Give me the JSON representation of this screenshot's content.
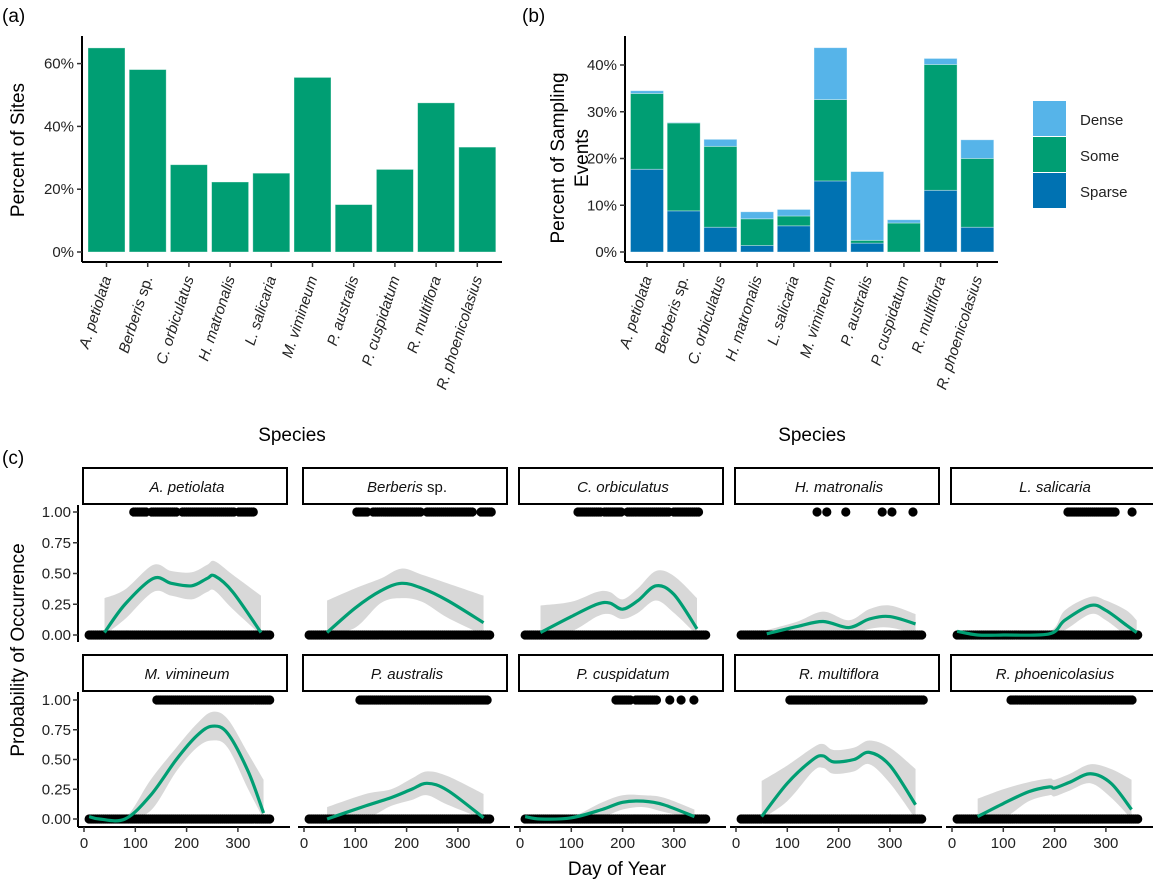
{
  "colors": {
    "green": "#009E73",
    "dense": "#56B4E9",
    "some": "#009E73",
    "sparse": "#0072B2",
    "ribbon": "#d4d4d4",
    "points": "#000000"
  },
  "chart_data": [
    {
      "panel": "(a)",
      "type": "bar",
      "xlabel": "Species",
      "ylabel": "Percent of Sites",
      "categories": [
        "A. petiolata",
        "Berberis sp.",
        "C. orbiculatus",
        "H. matronalis",
        "L. salicaria",
        "M. vimineum",
        "P. australis",
        "P. cuspidatum",
        "R. multiflora",
        "R. phoenicolasius"
      ],
      "values": [
        65.0,
        58.1,
        27.8,
        22.3,
        25.1,
        55.6,
        15.1,
        26.3,
        47.5,
        33.4
      ],
      "yticks": [
        "0%",
        "20%",
        "40%",
        "60%"
      ],
      "ylim": [
        0,
        68
      ],
      "grid": false
    },
    {
      "panel": "(b)",
      "type": "bar",
      "stacked": true,
      "xlabel": "Species",
      "ylabel": [
        "Percent of Sampling",
        "Events"
      ],
      "categories": [
        "A. petiolata",
        "Berberis sp.",
        "C. orbiculatus",
        "H. matronalis",
        "L. salicaria",
        "M. vimineum",
        "P. australis",
        "P. cuspidatum",
        "R. multiflora",
        "R. phoenicolasius"
      ],
      "series": [
        {
          "name": "Sparse",
          "values": [
            17.7,
            8.8,
            5.3,
            1.4,
            5.6,
            15.2,
            1.9,
            0.0,
            13.2,
            5.3
          ]
        },
        {
          "name": "Some",
          "values": [
            16.2,
            18.8,
            17.3,
            5.7,
            2.1,
            17.4,
            0.6,
            6.2,
            26.9,
            14.7
          ]
        },
        {
          "name": "Dense",
          "values": [
            0.6,
            0.1,
            1.5,
            1.5,
            1.4,
            11.1,
            14.7,
            0.7,
            1.3,
            4.0
          ]
        }
      ],
      "legend": {
        "entries": [
          "Dense",
          "Some",
          "Sparse"
        ],
        "placement": "right"
      },
      "yticks": [
        "0%",
        "10%",
        "20%",
        "30%",
        "40%"
      ],
      "ylim": [
        0,
        45
      ],
      "grid": false
    },
    {
      "panel": "(c)",
      "type": "scatter",
      "xlabel": "Day of Year",
      "ylabel": "Probability of Occurrence",
      "xticks": [
        "0",
        "100",
        "200",
        "300"
      ],
      "yticks": [
        "0.00",
        "0.25",
        "0.50",
        "0.75",
        "1.00"
      ],
      "xlim": [
        -10,
        375
      ],
      "ylim": [
        0,
        1
      ],
      "grid": false,
      "facets": [
        {
          "title": "A. petiolata",
          "presence_ranges": [
            [
              97,
              122
            ],
            [
              132,
              183
            ],
            [
              192,
              292
            ],
            [
              302,
              330
            ]
          ],
          "absence_ranges": [
            [
              10,
              365
            ]
          ],
          "smooth": {
            "x": [
              40,
              80,
              135,
              170,
              210,
              240,
              255,
              290,
              345
            ],
            "y": [
              0.02,
              0.25,
              0.46,
              0.42,
              0.4,
              0.46,
              0.48,
              0.35,
              0.02
            ],
            "se": [
              0.28,
              0.12,
              0.11,
              0.1,
              0.11,
              0.11,
              0.12,
              0.14,
              0.3
            ]
          }
        },
        {
          "title": "Berberis sp.",
          "presence_ranges": [
            [
              103,
              125
            ],
            [
              135,
              230
            ],
            [
              240,
              330
            ],
            [
              345,
              365
            ]
          ],
          "absence_ranges": [
            [
              10,
              365
            ]
          ],
          "smooth": {
            "x": [
              45,
              100,
              150,
              190,
              230,
              280,
              350
            ],
            "y": [
              0.02,
              0.22,
              0.36,
              0.42,
              0.38,
              0.28,
              0.1
            ],
            "se": [
              0.26,
              0.16,
              0.1,
              0.12,
              0.11,
              0.14,
              0.22
            ]
          }
        },
        {
          "title": "C. orbiculatus",
          "presence_ranges": [
            [
              113,
              160
            ],
            [
              165,
              200
            ],
            [
              210,
              290
            ],
            [
              300,
              350
            ]
          ],
          "absence_ranges": [
            [
              10,
              365
            ]
          ],
          "smooth": {
            "x": [
              40,
              100,
              150,
              175,
              200,
              230,
              265,
              300,
              345
            ],
            "y": [
              0.02,
              0.15,
              0.25,
              0.26,
              0.21,
              0.28,
              0.4,
              0.33,
              0.05
            ],
            "se": [
              0.22,
              0.12,
              0.1,
              0.09,
              0.08,
              0.1,
              0.12,
              0.15,
              0.25
            ]
          }
        },
        {
          "title": "H. matronalis",
          "presence_points": [
            158,
            177,
            214,
            285,
            304,
            345
          ],
          "absence_ranges": [
            [
              10,
              365
            ]
          ],
          "smooth": {
            "x": [
              60,
              120,
              170,
              220,
              260,
              300,
              350
            ],
            "y": [
              0.01,
              0.07,
              0.11,
              0.06,
              0.13,
              0.15,
              0.09
            ],
            "se": [
              0.03,
              0.04,
              0.08,
              0.06,
              0.08,
              0.09,
              0.08
            ]
          }
        },
        {
          "title": "L. salicaria",
          "presence_ranges": [
            [
              226,
              318
            ]
          ],
          "presence_points": [
            351
          ],
          "absence_ranges": [
            [
              10,
              365
            ]
          ],
          "smooth": {
            "x": [
              10,
              50,
              100,
              190,
              220,
              270,
              300,
              340,
              360
            ],
            "y": [
              0.03,
              0.0,
              0.0,
              0.01,
              0.12,
              0.24,
              0.2,
              0.08,
              0.02
            ],
            "se": [
              0.01,
              0.01,
              0.01,
              0.02,
              0.08,
              0.07,
              0.08,
              0.12,
              0.1
            ]
          }
        },
        {
          "title": "M. vimineum",
          "presence_ranges": [
            [
              142,
              365
            ]
          ],
          "absence_ranges": [
            [
              10,
              365
            ]
          ],
          "smooth": {
            "x": [
              10,
              30,
              80,
              130,
              180,
              220,
              250,
              280,
              320,
              350
            ],
            "y": [
              0.02,
              0.0,
              0.0,
              0.2,
              0.5,
              0.7,
              0.78,
              0.72,
              0.4,
              0.05
            ],
            "se": [
              0.01,
              0.01,
              0.01,
              0.13,
              0.1,
              0.1,
              0.12,
              0.12,
              0.15,
              0.28
            ]
          }
        },
        {
          "title": "P. australis",
          "presence_ranges": [
            [
              109,
              357
            ]
          ],
          "absence_ranges": [
            [
              10,
              365
            ]
          ],
          "smooth": {
            "x": [
              45,
              120,
              170,
              210,
              240,
              280,
              350
            ],
            "y": [
              0.0,
              0.11,
              0.18,
              0.25,
              0.3,
              0.24,
              0.01
            ],
            "se": [
              0.1,
              0.1,
              0.07,
              0.09,
              0.1,
              0.12,
              0.2
            ]
          }
        },
        {
          "title": "P. cuspidatum",
          "presence_ranges": [
            [
              187,
              216
            ],
            [
              226,
              267
            ]
          ],
          "presence_points": [
            292,
            314,
            339
          ],
          "absence_ranges": [
            [
              10,
              365
            ]
          ],
          "smooth": {
            "x": [
              10,
              40,
              100,
              160,
              200,
              240,
              280,
              340
            ],
            "y": [
              0.02,
              0.0,
              0.01,
              0.08,
              0.14,
              0.15,
              0.12,
              0.02
            ],
            "se": [
              0.01,
              0.01,
              0.01,
              0.06,
              0.06,
              0.05,
              0.06,
              0.06
            ]
          }
        },
        {
          "title": "R. multiflora",
          "presence_ranges": [
            [
              105,
              365
            ]
          ],
          "absence_ranges": [
            [
              10,
              365
            ]
          ],
          "smooth": {
            "x": [
              50,
              100,
              150,
              170,
              190,
              230,
              260,
              300,
              350
            ],
            "y": [
              0.02,
              0.3,
              0.5,
              0.53,
              0.48,
              0.5,
              0.56,
              0.45,
              0.12
            ],
            "se": [
              0.3,
              0.15,
              0.1,
              0.1,
              0.1,
              0.1,
              0.1,
              0.15,
              0.3
            ]
          }
        },
        {
          "title": "R. phoenicolasius",
          "presence_ranges": [
            [
              115,
              353
            ]
          ],
          "absence_ranges": [
            [
              10,
              365
            ]
          ],
          "smooth": {
            "x": [
              50,
              100,
              150,
              190,
              200,
              230,
              270,
              310,
              350
            ],
            "y": [
              0.02,
              0.13,
              0.23,
              0.27,
              0.26,
              0.31,
              0.38,
              0.3,
              0.08
            ],
            "se": [
              0.15,
              0.12,
              0.08,
              0.07,
              0.07,
              0.07,
              0.08,
              0.12,
              0.25
            ]
          }
        }
      ]
    }
  ]
}
